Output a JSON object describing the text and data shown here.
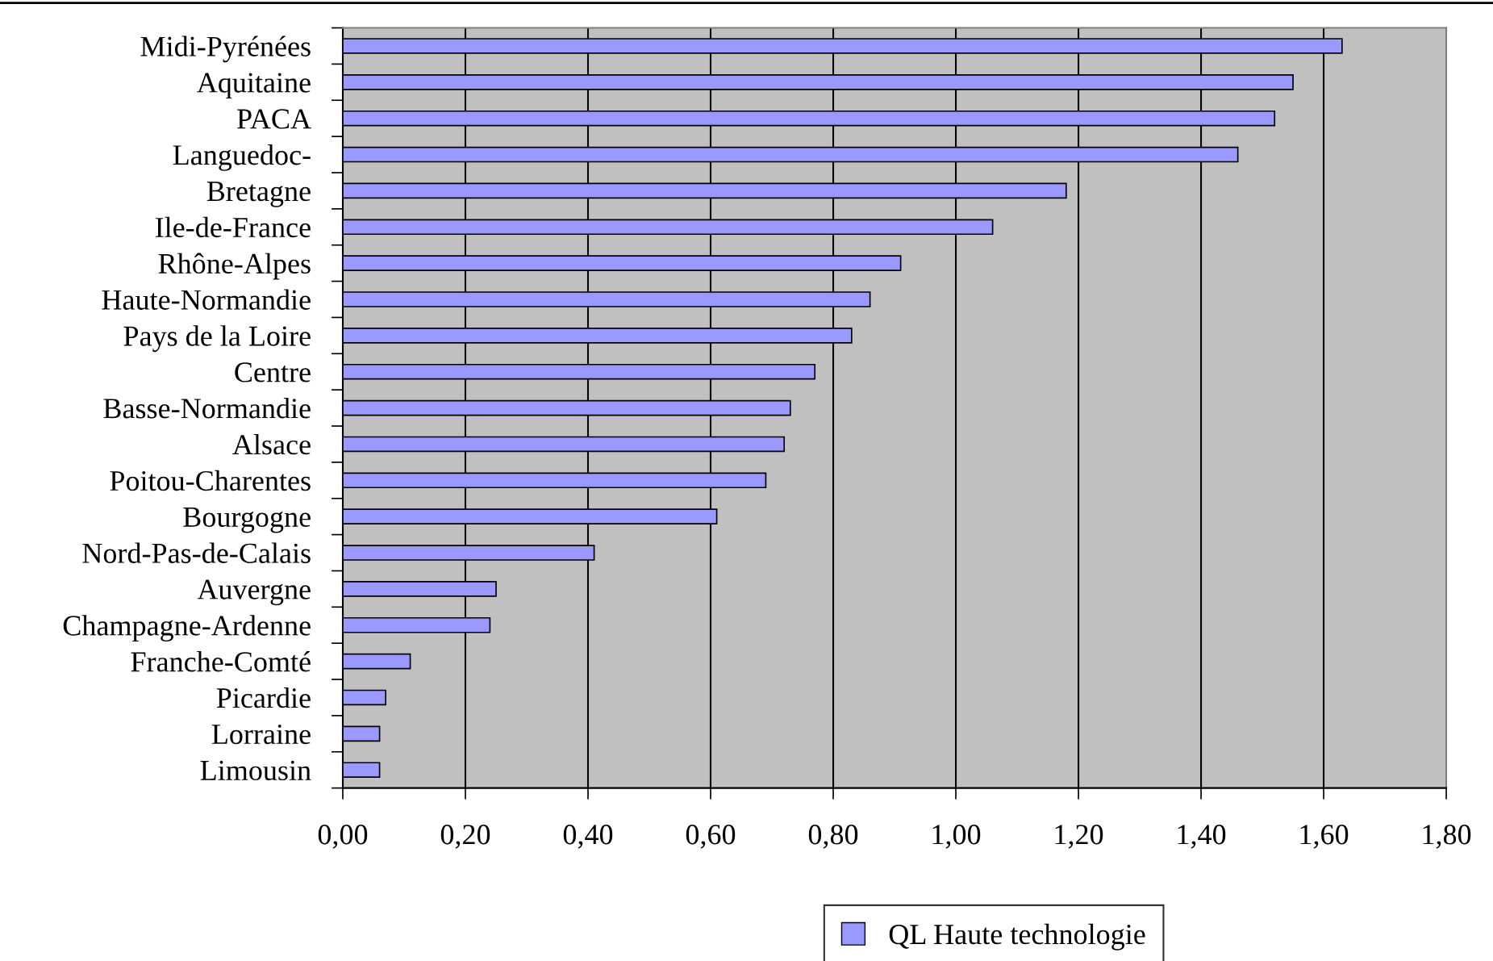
{
  "chart_data": {
    "type": "bar",
    "orientation": "horizontal",
    "categories": [
      "Midi-Pyrénées",
      "Aquitaine",
      "PACA",
      "Languedoc-",
      "Bretagne",
      "Ile-de-France",
      "Rhône-Alpes",
      "Haute-Normandie",
      "Pays de la Loire",
      "Centre",
      "Basse-Normandie",
      "Alsace",
      "Poitou-Charentes",
      "Bourgogne",
      "Nord-Pas-de-Calais",
      "Auvergne",
      "Champagne-Ardenne",
      "Franche-Comté",
      "Picardie",
      "Lorraine",
      "Limousin"
    ],
    "series": [
      {
        "name": "QL Haute technologie",
        "color": "#9999ff",
        "values": [
          1.63,
          1.55,
          1.52,
          1.46,
          1.18,
          1.06,
          0.91,
          0.86,
          0.83,
          0.77,
          0.73,
          0.72,
          0.69,
          0.61,
          0.41,
          0.25,
          0.24,
          0.11,
          0.07,
          0.06,
          0.06
        ]
      }
    ],
    "xlim": [
      0,
      1.8
    ],
    "xticks": [
      {
        "value": 0,
        "label": "0,00"
      },
      {
        "value": 0.2,
        "label": "0,20"
      },
      {
        "value": 0.4,
        "label": "0,40"
      },
      {
        "value": 0.6,
        "label": "0,60"
      },
      {
        "value": 0.8,
        "label": "0,80"
      },
      {
        "value": 1.0,
        "label": "1,00"
      },
      {
        "value": 1.2,
        "label": "1,20"
      },
      {
        "value": 1.4,
        "label": "1,40"
      },
      {
        "value": 1.6,
        "label": "1,60"
      },
      {
        "value": 1.8,
        "label": "1,80"
      }
    ],
    "grid": "x",
    "legend": "bottom"
  }
}
